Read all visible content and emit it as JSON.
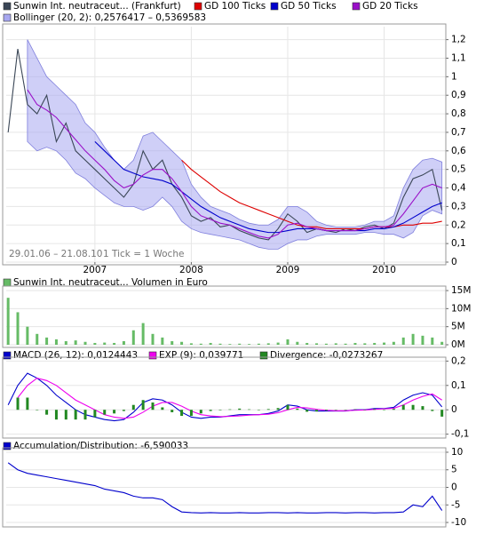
{
  "chart_data": [
    {
      "type": "line",
      "grid": true,
      "annotations": [
        "29.01.06 – 21.08.10",
        "1 Tick = 1 Woche"
      ],
      "x": [
        2006.1,
        2006.2,
        2006.3,
        2006.4,
        2006.5,
        2006.6,
        2006.7,
        2006.8,
        2006.9,
        2007.0,
        2007.1,
        2007.2,
        2007.3,
        2007.4,
        2007.5,
        2007.6,
        2007.7,
        2007.8,
        2007.9,
        2008.0,
        2008.1,
        2008.2,
        2008.3,
        2008.4,
        2008.5,
        2008.6,
        2008.7,
        2008.8,
        2008.9,
        2009.0,
        2009.1,
        2009.2,
        2009.3,
        2009.4,
        2009.5,
        2009.6,
        2009.7,
        2009.8,
        2009.9,
        2010.0,
        2010.1,
        2010.2,
        2010.3,
        2010.4,
        2010.5,
        2010.6
      ],
      "xlim": [
        2006.08,
        2010.64
      ],
      "xticks": [
        2007,
        2008,
        2009,
        2010
      ],
      "ylim": [
        0,
        1.27
      ],
      "yticks": [
        0,
        {
          "value": 0.1,
          "label": "0,1"
        },
        {
          "value": 0.2,
          "label": "0,2"
        },
        {
          "value": 0.3,
          "label": "0,3"
        },
        {
          "value": 0.4,
          "label": "0,4"
        },
        {
          "value": 0.5,
          "label": "0,5"
        },
        {
          "value": 0.6,
          "label": "0,6"
        },
        {
          "value": 0.7,
          "label": "0,7"
        },
        {
          "value": 0.8,
          "label": "0,8"
        },
        {
          "value": 0.9,
          "label": "0,9"
        },
        1,
        {
          "value": 1.1,
          "label": "1,1"
        },
        {
          "value": 1.2,
          "label": "1,2"
        }
      ],
      "series": [
        {
          "name": "Bollinger (20, 2): 0,2576417 – 0,5369583",
          "color": "#a8a8f0",
          "upper": [
            null,
            null,
            1.2,
            1.1,
            1.0,
            0.95,
            0.9,
            0.85,
            0.75,
            0.7,
            0.62,
            0.55,
            0.5,
            0.55,
            0.68,
            0.7,
            0.65,
            0.6,
            0.55,
            0.42,
            0.35,
            0.3,
            0.28,
            0.26,
            0.23,
            0.21,
            0.2,
            0.2,
            0.23,
            0.3,
            0.3,
            0.27,
            0.22,
            0.2,
            0.19,
            0.19,
            0.19,
            0.2,
            0.22,
            0.22,
            0.25,
            0.4,
            0.5,
            0.55,
            0.56,
            0.54
          ],
          "lower": [
            null,
            null,
            0.65,
            0.6,
            0.62,
            0.6,
            0.55,
            0.48,
            0.45,
            0.4,
            0.36,
            0.32,
            0.3,
            0.3,
            0.28,
            0.3,
            0.35,
            0.3,
            0.22,
            0.18,
            0.16,
            0.15,
            0.14,
            0.13,
            0.12,
            0.1,
            0.08,
            0.07,
            0.07,
            0.1,
            0.12,
            0.12,
            0.14,
            0.15,
            0.15,
            0.15,
            0.15,
            0.16,
            0.16,
            0.15,
            0.15,
            0.13,
            0.16,
            0.25,
            0.28,
            0.26
          ]
        },
        {
          "name": "Sunwin Int. neutraceut... (Frankfurt)",
          "color": "#3a4656",
          "values": [
            0.7,
            1.15,
            0.85,
            0.8,
            0.9,
            0.65,
            0.75,
            0.6,
            0.55,
            0.5,
            0.45,
            0.4,
            0.35,
            0.42,
            0.6,
            0.5,
            0.55,
            0.42,
            0.35,
            0.25,
            0.22,
            0.24,
            0.19,
            0.2,
            0.17,
            0.15,
            0.13,
            0.12,
            0.18,
            0.26,
            0.22,
            0.16,
            0.18,
            0.17,
            0.16,
            0.18,
            0.17,
            0.19,
            0.2,
            0.18,
            0.21,
            0.35,
            0.45,
            0.47,
            0.5,
            0.28
          ]
        },
        {
          "name": "GD 100 Ticks",
          "color": "#dd0000",
          "values": [
            null,
            null,
            null,
            null,
            null,
            null,
            null,
            null,
            null,
            null,
            null,
            null,
            null,
            null,
            null,
            null,
            null,
            null,
            0.55,
            0.5,
            0.46,
            0.42,
            0.38,
            0.35,
            0.32,
            0.3,
            0.28,
            0.26,
            0.24,
            0.22,
            0.2,
            0.19,
            0.19,
            0.18,
            0.18,
            0.18,
            0.18,
            0.18,
            0.19,
            0.19,
            0.19,
            0.2,
            0.2,
            0.21,
            0.21,
            0.22
          ]
        },
        {
          "name": "GD 50 Ticks",
          "color": "#0000cc",
          "values": [
            null,
            null,
            null,
            null,
            null,
            null,
            null,
            null,
            null,
            0.65,
            0.6,
            0.55,
            0.5,
            0.48,
            0.46,
            0.45,
            0.44,
            0.42,
            0.38,
            0.34,
            0.3,
            0.27,
            0.24,
            0.22,
            0.2,
            0.18,
            0.17,
            0.16,
            0.16,
            0.17,
            0.18,
            0.18,
            0.18,
            0.17,
            0.17,
            0.17,
            0.17,
            0.17,
            0.18,
            0.18,
            0.19,
            0.21,
            0.24,
            0.27,
            0.3,
            0.32
          ]
        },
        {
          "name": "GD 20 Ticks",
          "color": "#9a10c8",
          "values": [
            null,
            null,
            0.93,
            0.85,
            0.82,
            0.78,
            0.72,
            0.66,
            0.6,
            0.55,
            0.5,
            0.44,
            0.4,
            0.42,
            0.47,
            0.5,
            0.5,
            0.45,
            0.38,
            0.3,
            0.25,
            0.23,
            0.21,
            0.2,
            0.18,
            0.16,
            0.14,
            0.13,
            0.15,
            0.2,
            0.21,
            0.19,
            0.18,
            0.17,
            0.17,
            0.17,
            0.17,
            0.18,
            0.19,
            0.19,
            0.2,
            0.26,
            0.33,
            0.4,
            0.42,
            0.4
          ]
        }
      ]
    },
    {
      "type": "bar",
      "grid": true,
      "x": [
        2006.1,
        2006.2,
        2006.3,
        2006.4,
        2006.5,
        2006.6,
        2006.7,
        2006.8,
        2006.9,
        2007.0,
        2007.1,
        2007.2,
        2007.3,
        2007.4,
        2007.5,
        2007.6,
        2007.7,
        2007.8,
        2007.9,
        2008.0,
        2008.1,
        2008.2,
        2008.3,
        2008.4,
        2008.5,
        2008.6,
        2008.7,
        2008.8,
        2008.9,
        2009.0,
        2009.1,
        2009.2,
        2009.3,
        2009.4,
        2009.5,
        2009.6,
        2009.7,
        2009.8,
        2009.9,
        2010.0,
        2010.1,
        2010.2,
        2010.3,
        2010.4,
        2010.5,
        2010.6
      ],
      "xlim": [
        2006.08,
        2010.64
      ],
      "ylim": [
        0,
        15500000
      ],
      "yticks": [
        {
          "value": 0,
          "label": "0M"
        },
        {
          "value": 5000000,
          "label": "5M"
        },
        {
          "value": 10000000,
          "label": "10M"
        },
        {
          "value": 15000000,
          "label": "15M"
        }
      ],
      "series": [
        {
          "name": "Sunwin Int. neutraceut... Volumen in Euro",
          "color": "#66bb66",
          "values": [
            13000000,
            9000000,
            5000000,
            3000000,
            2000000,
            1500000,
            1000000,
            1200000,
            800000,
            500000,
            600000,
            500000,
            1000000,
            4000000,
            6000000,
            3000000,
            2000000,
            1000000,
            800000,
            400000,
            300000,
            500000,
            300000,
            200000,
            300000,
            200000,
            300000,
            400000,
            600000,
            1500000,
            800000,
            500000,
            400000,
            300000,
            400000,
            300000,
            500000,
            400000,
            500000,
            600000,
            800000,
            2000000,
            3000000,
            2500000,
            2000000,
            800000
          ]
        }
      ]
    },
    {
      "type": "line",
      "grid": true,
      "x": [
        2006.1,
        2006.2,
        2006.3,
        2006.4,
        2006.5,
        2006.6,
        2006.7,
        2006.8,
        2006.9,
        2007.0,
        2007.1,
        2007.2,
        2007.3,
        2007.4,
        2007.5,
        2007.6,
        2007.7,
        2007.8,
        2007.9,
        2008.0,
        2008.1,
        2008.2,
        2008.3,
        2008.4,
        2008.5,
        2008.6,
        2008.7,
        2008.8,
        2008.9,
        2009.0,
        2009.1,
        2009.2,
        2009.3,
        2009.4,
        2009.5,
        2009.6,
        2009.7,
        2009.8,
        2009.9,
        2010.0,
        2010.1,
        2010.2,
        2010.3,
        2010.4,
        2010.5,
        2010.6
      ],
      "xlim": [
        2006.08,
        2010.64
      ],
      "ylim": [
        -0.105,
        0.205
      ],
      "yticks": [
        {
          "value": -0.1,
          "label": "-0,1"
        },
        0,
        {
          "value": 0.1,
          "label": "0,1"
        },
        {
          "value": 0.2,
          "label": "0,2"
        }
      ],
      "series": [
        {
          "name": "MACD (26, 12): 0,0124443",
          "color": "#0000cc",
          "values": [
            0.02,
            0.1,
            0.15,
            0.13,
            0.1,
            0.06,
            0.03,
            0.0,
            -0.02,
            -0.03,
            -0.04,
            -0.045,
            -0.04,
            -0.01,
            0.03,
            0.045,
            0.04,
            0.02,
            -0.01,
            -0.03,
            -0.035,
            -0.03,
            -0.03,
            -0.025,
            -0.02,
            -0.02,
            -0.02,
            -0.015,
            -0.005,
            0.02,
            0.015,
            0.0,
            -0.005,
            -0.005,
            -0.005,
            -0.005,
            0.0,
            0.0,
            0.005,
            0.005,
            0.01,
            0.04,
            0.06,
            0.07,
            0.06,
            0.012
          ]
        },
        {
          "name": "EXP (9): 0,039771",
          "color": "#ee00ee",
          "values": [
            null,
            0.05,
            0.1,
            0.13,
            0.12,
            0.1,
            0.07,
            0.04,
            0.02,
            0.0,
            -0.02,
            -0.03,
            -0.035,
            -0.03,
            -0.01,
            0.015,
            0.03,
            0.03,
            0.015,
            -0.005,
            -0.02,
            -0.025,
            -0.028,
            -0.027,
            -0.025,
            -0.022,
            -0.02,
            -0.018,
            -0.012,
            0.0,
            0.01,
            0.008,
            0.002,
            -0.002,
            -0.004,
            -0.004,
            -0.002,
            -0.001,
            0.002,
            0.004,
            0.006,
            0.02,
            0.04,
            0.055,
            0.065,
            0.04
          ]
        },
        {
          "name": "Divergence: -0,0273267",
          "color": "#228822",
          "type": "bar",
          "values": [
            null,
            0.05,
            0.05,
            0.0,
            -0.02,
            -0.04,
            -0.04,
            -0.04,
            -0.04,
            -0.03,
            -0.02,
            -0.015,
            -0.005,
            0.02,
            0.04,
            0.03,
            0.01,
            -0.01,
            -0.025,
            -0.025,
            -0.015,
            -0.005,
            -0.002,
            0.002,
            0.005,
            0.002,
            0.0,
            0.003,
            0.007,
            0.02,
            0.005,
            -0.008,
            -0.007,
            -0.003,
            -0.001,
            -0.001,
            0.002,
            0.001,
            0.003,
            0.001,
            0.004,
            0.02,
            0.02,
            0.015,
            -0.005,
            -0.028
          ]
        }
      ]
    },
    {
      "type": "line",
      "grid": true,
      "x": [
        2006.1,
        2006.2,
        2006.3,
        2006.4,
        2006.5,
        2006.6,
        2006.7,
        2006.8,
        2006.9,
        2007.0,
        2007.1,
        2007.2,
        2007.3,
        2007.4,
        2007.5,
        2007.6,
        2007.7,
        2007.8,
        2007.9,
        2008.0,
        2008.1,
        2008.2,
        2008.3,
        2008.4,
        2008.5,
        2008.6,
        2008.7,
        2008.8,
        2008.9,
        2009.0,
        2009.1,
        2009.2,
        2009.3,
        2009.4,
        2009.5,
        2009.6,
        2009.7,
        2009.8,
        2009.9,
        2010.0,
        2010.1,
        2010.2,
        2010.3,
        2010.4,
        2010.5,
        2010.6
      ],
      "xlim": [
        2006.08,
        2010.64
      ],
      "ylim": [
        -10.5,
        10.5
      ],
      "yticks": [
        -10,
        -5,
        0,
        5,
        10
      ],
      "series": [
        {
          "name": "Accumulation/Distribution: -6,590033",
          "color": "#0000cc",
          "values": [
            7,
            5,
            4,
            3.5,
            3,
            2.5,
            2,
            1.5,
            1,
            0.5,
            -0.5,
            -1,
            -1.5,
            -2.5,
            -3,
            -3,
            -3.5,
            -5.5,
            -7,
            -7.2,
            -7.3,
            -7.2,
            -7.3,
            -7.3,
            -7.2,
            -7.3,
            -7.3,
            -7.2,
            -7.2,
            -7.3,
            -7.2,
            -7.3,
            -7.3,
            -7.2,
            -7.2,
            -7.3,
            -7.2,
            -7.2,
            -7.3,
            -7.2,
            -7.2,
            -7,
            -5,
            -5.5,
            -2.5,
            -6.59
          ]
        }
      ]
    }
  ]
}
